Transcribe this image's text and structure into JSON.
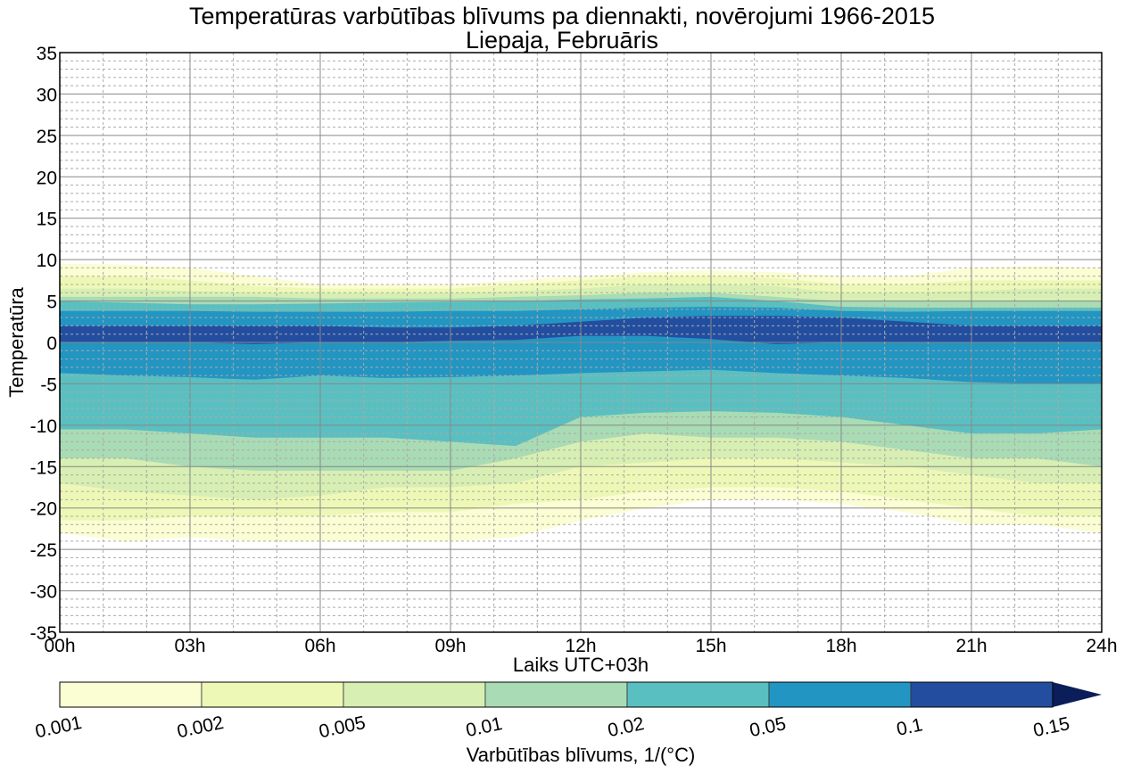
{
  "chart_data": {
    "type": "contour",
    "title": "Temperatūras varbūtības blīvums pa diennakti, novērojumi 1966-2015",
    "subtitle": "Liepaja, Februāris",
    "xlabel": "Laiks UTC+03h",
    "ylabel": "Temperatūra",
    "xlim": [
      0,
      24
    ],
    "ylim": [
      -35,
      35
    ],
    "x_ticks": [
      0,
      3,
      6,
      9,
      12,
      15,
      18,
      21,
      24
    ],
    "x_tick_labels": [
      "00h",
      "03h",
      "06h",
      "09h",
      "12h",
      "15h",
      "18h",
      "21h",
      "24h"
    ],
    "y_ticks": [
      35,
      30,
      25,
      20,
      15,
      10,
      5,
      0,
      -5,
      -10,
      -15,
      -20,
      -25,
      -30,
      -35
    ],
    "y_tick_labels": [
      "35",
      "30",
      "25",
      "20",
      "15",
      "10",
      "5",
      "0",
      "-5",
      "-10",
      "-15",
      "-20",
      "-25",
      "-30",
      "-35"
    ],
    "grid": {
      "major": true,
      "minor": true,
      "minor_x_step_h": 1,
      "minor_y_step_c": 1
    },
    "colorbar": {
      "label": "Varbūtības blīvums, 1/(°C)",
      "levels": [
        0.001,
        0.002,
        0.005,
        0.01,
        0.02,
        0.05,
        0.1,
        0.15
      ],
      "tick_labels": [
        "0.001",
        "0.002",
        "0.005",
        "0.01",
        "0.02",
        "0.05",
        "0.1",
        "0.15"
      ],
      "colors": [
        "#fbfdd2",
        "#eef8b6",
        "#d7efb2",
        "#a9dbb4",
        "#5abfc0",
        "#2295c2",
        "#234ea0"
      ],
      "extend_color": "#0b1e5a",
      "extend": "max",
      "placement": "bottom"
    },
    "hours": [
      0,
      1.5,
      3,
      4.5,
      6,
      7.5,
      9,
      10.5,
      12,
      13.5,
      15,
      16.5,
      18,
      19.5,
      21,
      22.5,
      24
    ],
    "contour_bands": [
      {
        "level": 0.001,
        "upper": [
          9.5,
          9.4,
          9,
          8,
          7,
          7,
          7,
          7.5,
          8,
          8.5,
          8.7,
          8.5,
          8,
          8,
          9,
          9.2,
          9
        ],
        "lower": [
          -23,
          -24,
          -23.5,
          -24,
          -24,
          -24,
          -24,
          -23.5,
          -21.5,
          -20,
          -19,
          -19,
          -19.5,
          -20.5,
          -22,
          -22,
          -23
        ]
      },
      {
        "level": 0.002,
        "upper": [
          8,
          8,
          7.5,
          6.8,
          6.5,
          6.5,
          6.5,
          7,
          7.5,
          8,
          8,
          7.8,
          7,
          7,
          7.5,
          7.5,
          7.5
        ],
        "lower": [
          -21.5,
          -21.5,
          -21,
          -21,
          -21,
          -20.5,
          -20.5,
          -19.5,
          -19,
          -18,
          -17.5,
          -17.5,
          -18,
          -19,
          -20,
          -21,
          -21
        ]
      },
      {
        "level": 0.005,
        "upper": [
          6.5,
          6.5,
          6.2,
          6,
          6,
          6,
          6,
          6.2,
          6.5,
          7,
          7,
          6.8,
          6,
          6,
          6.2,
          6.5,
          6.5
        ],
        "lower": [
          -17,
          -18,
          -18.5,
          -19,
          -18.5,
          -17.5,
          -17.5,
          -17,
          -15,
          -14.5,
          -14,
          -14,
          -14.5,
          -15,
          -16,
          -17,
          -17
        ]
      },
      {
        "level": 0.01,
        "upper": [
          5.5,
          5.5,
          5.5,
          5.5,
          5.3,
          5.3,
          5.3,
          5.5,
          5.7,
          6,
          6,
          5.5,
          5,
          5,
          5,
          5,
          5
        ],
        "lower": [
          -14,
          -14,
          -15,
          -15.5,
          -15.5,
          -15.5,
          -15.5,
          -14,
          -12,
          -11,
          -11.5,
          -11.5,
          -12,
          -13,
          -14,
          -14,
          -15
        ]
      },
      {
        "level": 0.02,
        "upper": [
          5,
          4.8,
          4.6,
          4.6,
          4.7,
          4.8,
          4.9,
          5,
          5.2,
          5.3,
          5.5,
          5,
          4.3,
          4.2,
          4.2,
          4.2,
          4.2
        ],
        "lower": [
          -10.5,
          -10.5,
          -11,
          -11.5,
          -11.5,
          -11.5,
          -12,
          -12.5,
          -9,
          -8.5,
          -8.3,
          -8.5,
          -9,
          -10,
          -11,
          -11,
          -10.5
        ]
      },
      {
        "level": 0.05,
        "upper": [
          3.8,
          3.8,
          3.8,
          3.7,
          3.7,
          3.7,
          3.8,
          3.8,
          4,
          4.2,
          4.3,
          4.2,
          3.8,
          3.7,
          3.8,
          3.8,
          3.8
        ],
        "lower": [
          -3.7,
          -4,
          -4.2,
          -4.5,
          -4,
          -4.3,
          -4.2,
          -4,
          -3.7,
          -3.5,
          -3.3,
          -3.7,
          -4,
          -4.3,
          -4.8,
          -5,
          -5
        ]
      },
      {
        "level": 0.1,
        "upper": [
          2,
          2,
          2,
          2,
          2,
          1.8,
          1.8,
          2,
          2.5,
          3,
          3.2,
          3.2,
          3,
          2.5,
          2,
          2,
          2
        ],
        "lower": [
          0,
          0,
          0,
          -0.2,
          0,
          0,
          0.2,
          0.3,
          0.8,
          0.8,
          0.4,
          -0.2,
          0,
          0,
          0,
          0,
          0
        ]
      }
    ]
  }
}
